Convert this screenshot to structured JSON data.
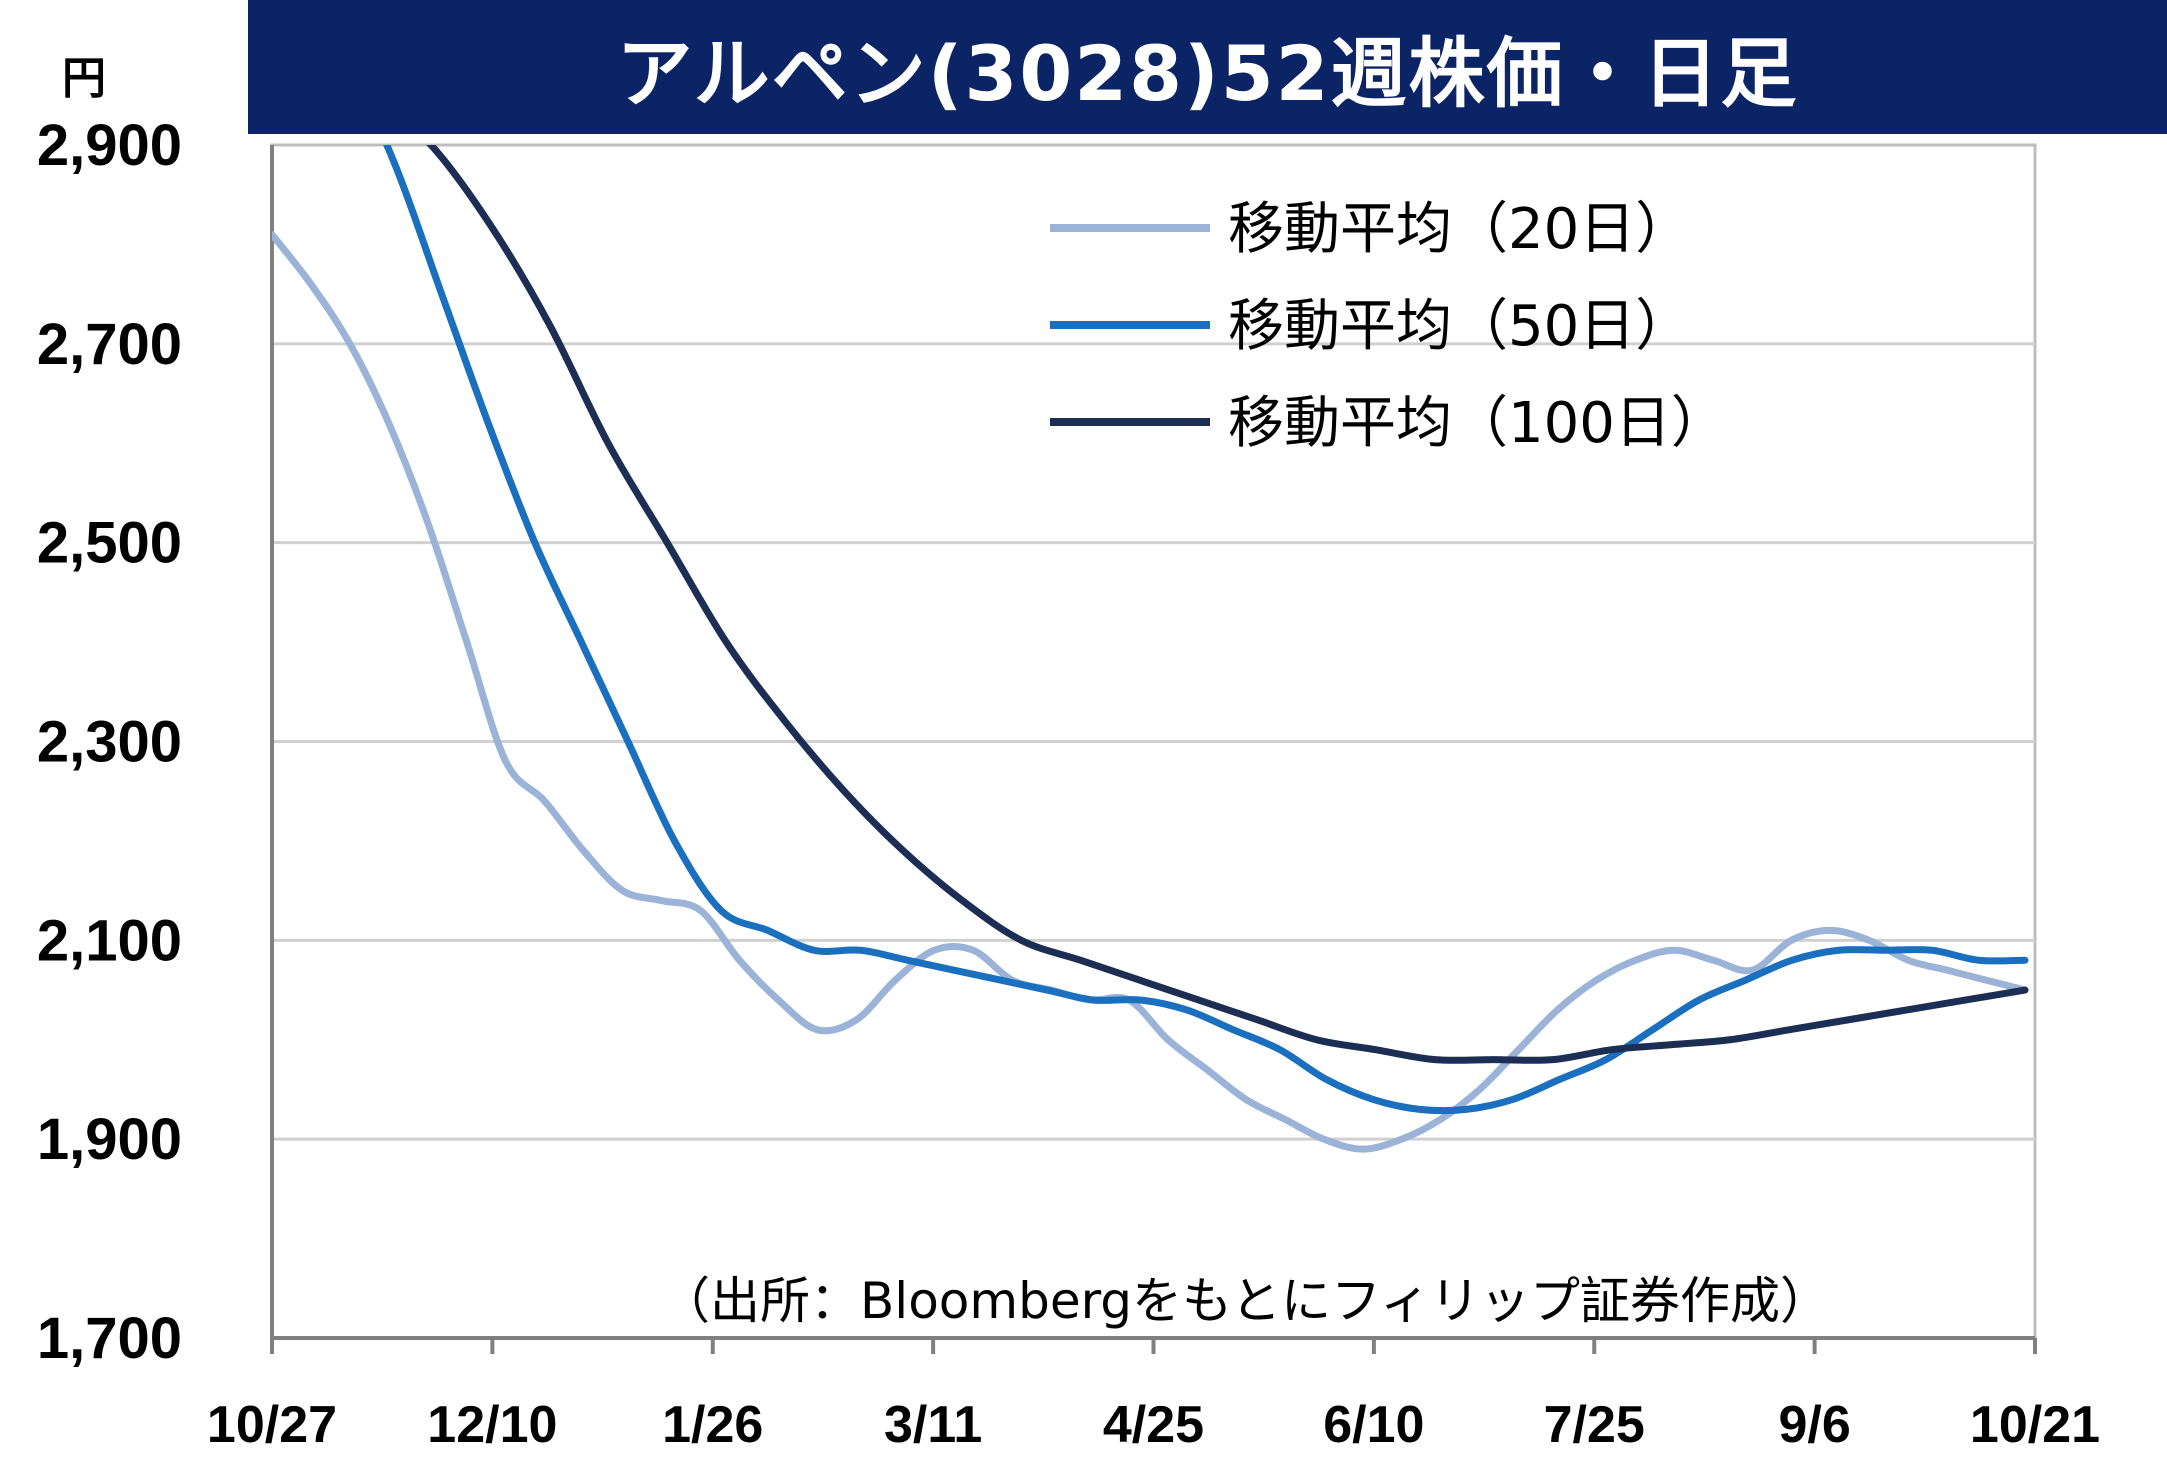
{
  "chart_data": {
    "type": "line",
    "title": "アルペン(3028)52週株価・日足",
    "ylabel": "円",
    "ylim": [
      1700,
      2900
    ],
    "yticks": [
      "1,700",
      "1,900",
      "2,100",
      "2,300",
      "2,500",
      "2,700",
      "2,900"
    ],
    "yticks_values": [
      1700,
      1900,
      2100,
      2300,
      2500,
      2700,
      2900
    ],
    "xticks": [
      "10/27",
      "12/10",
      "1/26",
      "3/11",
      "4/25",
      "6/10",
      "7/25",
      "9/6",
      "10/21"
    ],
    "grid": true,
    "legend_position": "top-right",
    "source": "（出所：Bloombergをもとにフィリップ証券作成）",
    "series": [
      {
        "name": "移動平均（20日）",
        "color": "#9ab3d6",
        "values": [
          2810,
          2760,
          2700,
          2620,
          2520,
          2400,
          2280,
          2240,
          2190,
          2150,
          2140,
          2130,
          2080,
          2040,
          2010,
          2020,
          2060,
          2090,
          2090,
          2060,
          2050,
          2040,
          2040,
          2000,
          1970,
          1940,
          1920,
          1900,
          1890,
          1900,
          1920,
          1950,
          1990,
          2030,
          2060,
          2080,
          2090,
          2080,
          2070,
          2100,
          2110,
          2100,
          2080,
          2070,
          2060,
          2050
        ]
      },
      {
        "name": "移動平均（50日）",
        "color": "#1a6fbe",
        "values": [
          3050,
          2980,
          2880,
          2750,
          2620,
          2500,
          2400,
          2300,
          2200,
          2130,
          2110,
          2090,
          2090,
          2080,
          2070,
          2060,
          2050,
          2040,
          2040,
          2030,
          2010,
          1990,
          1960,
          1940,
          1930,
          1930,
          1940,
          1960,
          1980,
          2010,
          2040,
          2060,
          2080,
          2090,
          2090,
          2090,
          2080,
          2080
        ]
      },
      {
        "name": "移動平均（100日）",
        "color": "#1c2e54",
        "values": [
          2950,
          2900,
          2820,
          2720,
          2600,
          2500,
          2400,
          2320,
          2250,
          2190,
          2140,
          2100,
          2080,
          2060,
          2040,
          2020,
          2000,
          1990,
          1980,
          1980,
          1980,
          1990,
          1995,
          2000,
          2010,
          2020,
          2030,
          2040,
          2050
        ]
      }
    ]
  }
}
